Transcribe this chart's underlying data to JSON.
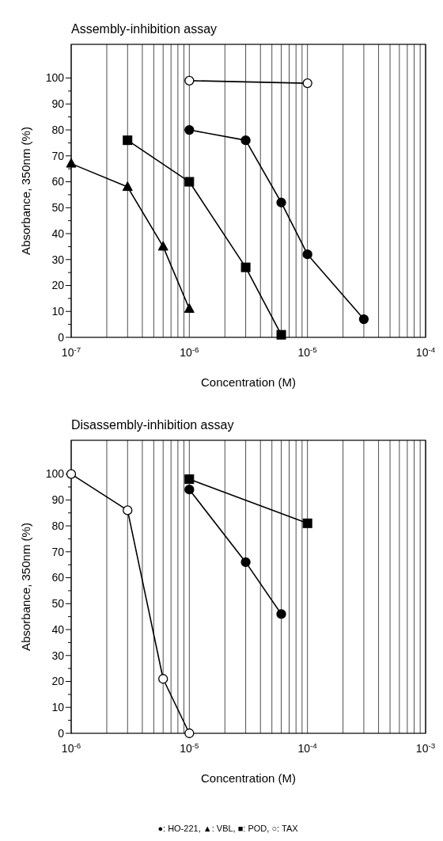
{
  "chart_data": [
    {
      "type": "line",
      "title": "Assembly-inhibition assay",
      "xlabel": "Concentration (M)",
      "ylabel": "Absorbance, 350nm (%)",
      "log": "x",
      "grid": "x",
      "marker": "circle",
      "line_style": "solid",
      "xlim": [
        1e-07,
        0.0001
      ],
      "ylim": [
        0,
        113
      ],
      "xticks": [
        {
          "value": 1e-07,
          "label": "10$^{-7}$"
        },
        {
          "value": 2e-07,
          "label": null
        },
        {
          "value": 3e-07,
          "label": null
        },
        {
          "value": 4e-07,
          "label": null
        },
        {
          "value": 5e-07,
          "label": null
        },
        {
          "value": 6e-07,
          "label": null
        },
        {
          "value": 7e-07,
          "label": null
        },
        {
          "value": 8e-07,
          "label": null
        },
        {
          "value": 9e-07,
          "label": null
        },
        {
          "value": 1e-06,
          "label": "10$^{-6}$"
        },
        {
          "value": 2e-06,
          "label": null
        },
        {
          "value": 3e-06,
          "label": null
        },
        {
          "value": 4e-06,
          "label": null
        },
        {
          "value": 5e-06,
          "label": null
        },
        {
          "value": 6e-06,
          "label": null
        },
        {
          "value": 7e-06,
          "label": null
        },
        {
          "value": 8e-06,
          "label": null
        },
        {
          "value": 9e-06,
          "label": null
        },
        {
          "value": 1e-05,
          "label": "10$^{-5}$"
        },
        {
          "value": 2e-05,
          "label": null
        },
        {
          "value": 3e-05,
          "label": null
        },
        {
          "value": 4e-05,
          "label": null
        },
        {
          "value": 5e-05,
          "label": null
        },
        {
          "value": 6e-05,
          "label": null
        },
        {
          "value": 7e-05,
          "label": null
        },
        {
          "value": 8e-05,
          "label": null
        },
        {
          "value": 9e-05,
          "label": null
        },
        {
          "value": 0.0001,
          "label": "10$^{-4}$"
        }
      ],
      "yticks": [
        0,
        {
          "value": 5,
          "label": null
        },
        10,
        {
          "value": 15,
          "label": null
        },
        20,
        {
          "value": 25,
          "label": null
        },
        30,
        {
          "value": 35,
          "label": null
        },
        40,
        {
          "value": 45,
          "label": null
        },
        50,
        {
          "value": 55,
          "label": null
        },
        60,
        {
          "value": 65,
          "label": null
        },
        70,
        {
          "value": 75,
          "label": null
        },
        80,
        {
          "value": 85,
          "label": null
        },
        90,
        {
          "value": 95,
          "label": null
        },
        100
      ],
      "series": [
        {
          "color": "#000000",
          "marker": "circle",
          "x": [
            1e-06,
            3e-06,
            6e-06,
            1e-05,
            3e-05
          ],
          "values": [
            80,
            76,
            52,
            32,
            7
          ]
        },
        {
          "color": "#000000",
          "marker": "triangle",
          "x": [
            1e-07,
            3e-07,
            6e-07,
            1e-06
          ],
          "values": [
            67,
            58,
            35,
            11
          ]
        },
        {
          "color": "#000000",
          "marker": "square",
          "x": [
            3e-07,
            1e-06,
            3e-06,
            6e-06
          ],
          "values": [
            76,
            60,
            27,
            1
          ]
        },
        {
          "color": "#000000",
          "marker": "circle",
          "colors": [
            "#ffffff",
            "#ffffff"
          ],
          "x": [
            1e-06,
            1e-05
          ],
          "values": [
            99,
            98
          ]
        }
      ]
    },
    {
      "type": "line",
      "title": "Disassembly-inhibition assay",
      "xlabel": "Concentration (M)",
      "ylabel": "Absorbance, 350nm (%)",
      "log": "x",
      "grid": "x",
      "marker": "circle",
      "line_style": "solid",
      "annotations": [
        "●: HO-221, ▲: VBL, ■: POD, ○: TAX"
      ],
      "xlim": [
        1e-06,
        0.001
      ],
      "ylim": [
        0,
        113
      ],
      "xticks": [
        {
          "value": 1e-06,
          "label": "10$^{-6}$"
        },
        {
          "value": 2e-06,
          "label": null
        },
        {
          "value": 3e-06,
          "label": null
        },
        {
          "value": 4e-06,
          "label": null
        },
        {
          "value": 5e-06,
          "label": null
        },
        {
          "value": 6e-06,
          "label": null
        },
        {
          "value": 7e-06,
          "label": null
        },
        {
          "value": 8e-06,
          "label": null
        },
        {
          "value": 9e-06,
          "label": null
        },
        {
          "value": 1e-05,
          "label": "10$^{-5}$"
        },
        {
          "value": 2e-05,
          "label": null
        },
        {
          "value": 3e-05,
          "label": null
        },
        {
          "value": 4e-05,
          "label": null
        },
        {
          "value": 5e-05,
          "label": null
        },
        {
          "value": 6e-05,
          "label": null
        },
        {
          "value": 7e-05,
          "label": null
        },
        {
          "value": 8e-05,
          "label": null
        },
        {
          "value": 9e-05,
          "label": null
        },
        {
          "value": 0.0001,
          "label": "10$^{-4}$"
        },
        {
          "value": 0.0002,
          "label": null
        },
        {
          "value": 0.0003,
          "label": null
        },
        {
          "value": 0.0004,
          "label": null
        },
        {
          "value": 0.0005,
          "label": null
        },
        {
          "value": 0.0006,
          "label": null
        },
        {
          "value": 0.0007,
          "label": null
        },
        {
          "value": 0.0008,
          "label": null
        },
        {
          "value": 0.0009,
          "label": null
        },
        {
          "value": 0.001,
          "label": "10$^{-3}$"
        }
      ],
      "yticks": [
        0,
        {
          "value": 5,
          "label": null
        },
        10,
        {
          "value": 15,
          "label": null
        },
        20,
        {
          "value": 25,
          "label": null
        },
        30,
        {
          "value": 35,
          "label": null
        },
        40,
        {
          "value": 45,
          "label": null
        },
        50,
        {
          "value": 55,
          "label": null
        },
        60,
        {
          "value": 65,
          "label": null
        },
        70,
        {
          "value": 75,
          "label": null
        },
        80,
        {
          "value": 85,
          "label": null
        },
        90,
        {
          "value": 95,
          "label": null
        },
        100
      ],
      "series": [
        {
          "color": "#000000",
          "marker": "circle",
          "x": [
            1e-05,
            3e-05,
            6e-05
          ],
          "values": [
            94,
            66,
            46
          ]
        },
        {
          "color": "#000000",
          "marker": "square",
          "x": [
            1e-05,
            0.0001
          ],
          "values": [
            98,
            81
          ]
        },
        {
          "color": "#000000",
          "marker": "circle",
          "colors": [
            "#ffffff",
            "#ffffff",
            "#ffffff",
            "#ffffff"
          ],
          "x": [
            1e-06,
            3e-06,
            6e-06,
            1e-05
          ],
          "values": [
            100,
            86,
            21,
            0
          ]
        }
      ]
    }
  ]
}
